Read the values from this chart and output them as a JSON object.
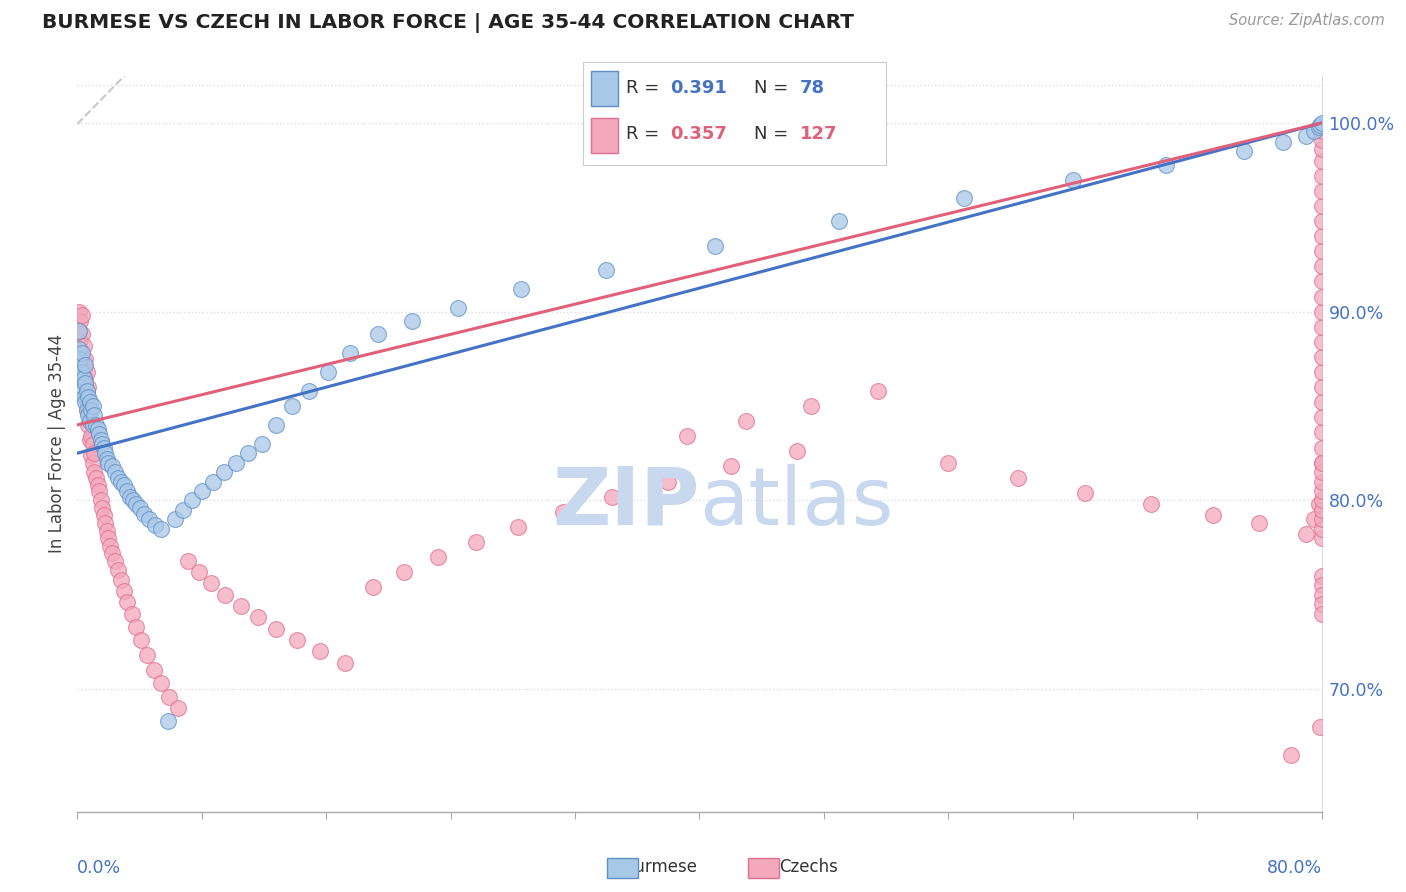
{
  "title": "BURMESE VS CZECH IN LABOR FORCE | AGE 35-44 CORRELATION CHART",
  "source_text": "Source: ZipAtlas.com",
  "ylabel": "In Labor Force | Age 35-44",
  "xmin": 0.0,
  "xmax": 0.8,
  "ymin": 0.635,
  "ymax": 1.025,
  "yticks": [
    0.7,
    0.8,
    0.9,
    1.0
  ],
  "ytick_labels": [
    "70.0%",
    "80.0%",
    "90.0%",
    "100.0%"
  ],
  "burmese_color": "#A8C8E8",
  "czech_color": "#F4A8BC",
  "burmese_edge_color": "#6090C8",
  "czech_edge_color": "#E07090",
  "burmese_line_color": "#4472C4",
  "czech_line_color": "#E0607A",
  "dashed_line_color": "#BBBBBB",
  "watermark_color": "#C8D8EE",
  "background_color": "#FFFFFF",
  "grid_color": "#DDDDDD",
  "axis_color": "#AAAAAA",
  "label_color": "#4472C4",
  "title_color": "#222222",
  "legend_r1_val": "0.391",
  "legend_n1_val": "78",
  "legend_r2_val": "0.357",
  "legend_n2_val": "127",
  "burmese_x": [
    0.001,
    0.001,
    0.001,
    0.002,
    0.002,
    0.003,
    0.003,
    0.003,
    0.004,
    0.004,
    0.005,
    0.005,
    0.005,
    0.006,
    0.006,
    0.007,
    0.007,
    0.008,
    0.008,
    0.009,
    0.01,
    0.01,
    0.011,
    0.012,
    0.013,
    0.014,
    0.015,
    0.016,
    0.017,
    0.018,
    0.019,
    0.02,
    0.022,
    0.024,
    0.026,
    0.028,
    0.03,
    0.032,
    0.034,
    0.036,
    0.038,
    0.04,
    0.043,
    0.046,
    0.05,
    0.054,
    0.058,
    0.063,
    0.068,
    0.074,
    0.08,
    0.087,
    0.094,
    0.102,
    0.11,
    0.119,
    0.128,
    0.138,
    0.149,
    0.161,
    0.175,
    0.193,
    0.215,
    0.245,
    0.285,
    0.34,
    0.41,
    0.49,
    0.57,
    0.64,
    0.7,
    0.75,
    0.775,
    0.79,
    0.795,
    0.798,
    0.799,
    0.8
  ],
  "burmese_y": [
    0.87,
    0.88,
    0.89,
    0.865,
    0.875,
    0.858,
    0.868,
    0.878,
    0.855,
    0.865,
    0.852,
    0.862,
    0.872,
    0.848,
    0.858,
    0.845,
    0.855,
    0.842,
    0.852,
    0.848,
    0.84,
    0.85,
    0.845,
    0.84,
    0.838,
    0.835,
    0.832,
    0.83,
    0.828,
    0.825,
    0.822,
    0.82,
    0.818,
    0.815,
    0.812,
    0.81,
    0.808,
    0.805,
    0.802,
    0.8,
    0.798,
    0.796,
    0.793,
    0.79,
    0.787,
    0.785,
    0.683,
    0.79,
    0.795,
    0.8,
    0.805,
    0.81,
    0.815,
    0.82,
    0.825,
    0.83,
    0.84,
    0.85,
    0.858,
    0.868,
    0.878,
    0.888,
    0.895,
    0.902,
    0.912,
    0.922,
    0.935,
    0.948,
    0.96,
    0.97,
    0.978,
    0.985,
    0.99,
    0.993,
    0.996,
    0.998,
    0.999,
    1.0
  ],
  "czech_x": [
    0.001,
    0.001,
    0.001,
    0.002,
    0.002,
    0.002,
    0.003,
    0.003,
    0.003,
    0.003,
    0.004,
    0.004,
    0.004,
    0.005,
    0.005,
    0.005,
    0.006,
    0.006,
    0.006,
    0.007,
    0.007,
    0.007,
    0.008,
    0.008,
    0.009,
    0.009,
    0.01,
    0.01,
    0.011,
    0.011,
    0.012,
    0.013,
    0.014,
    0.015,
    0.016,
    0.017,
    0.018,
    0.019,
    0.02,
    0.021,
    0.022,
    0.024,
    0.026,
    0.028,
    0.03,
    0.032,
    0.035,
    0.038,
    0.041,
    0.045,
    0.049,
    0.054,
    0.059,
    0.065,
    0.071,
    0.078,
    0.086,
    0.095,
    0.105,
    0.116,
    0.128,
    0.141,
    0.156,
    0.172,
    0.19,
    0.21,
    0.232,
    0.256,
    0.283,
    0.312,
    0.344,
    0.38,
    0.42,
    0.463,
    0.392,
    0.43,
    0.472,
    0.515,
    0.56,
    0.605,
    0.648,
    0.69,
    0.73,
    0.76,
    0.78,
    0.79,
    0.795,
    0.798,
    0.799,
    0.8,
    0.8,
    0.8,
    0.8,
    0.8,
    0.8,
    0.8,
    0.8,
    0.8,
    0.8,
    0.8,
    0.8,
    0.8,
    0.8,
    0.8,
    0.8,
    0.8,
    0.8,
    0.8,
    0.8,
    0.8,
    0.8,
    0.8,
    0.8,
    0.8,
    0.8,
    0.8,
    0.8,
    0.8,
    0.8,
    0.8,
    0.8,
    0.8,
    0.8,
    0.8,
    0.8,
    0.8,
    0.8
  ],
  "czech_y": [
    0.88,
    0.89,
    0.9,
    0.875,
    0.885,
    0.895,
    0.868,
    0.878,
    0.888,
    0.898,
    0.862,
    0.872,
    0.882,
    0.855,
    0.865,
    0.875,
    0.848,
    0.858,
    0.868,
    0.84,
    0.85,
    0.86,
    0.832,
    0.842,
    0.824,
    0.834,
    0.82,
    0.83,
    0.815,
    0.825,
    0.812,
    0.808,
    0.805,
    0.8,
    0.796,
    0.792,
    0.788,
    0.784,
    0.78,
    0.776,
    0.772,
    0.768,
    0.763,
    0.758,
    0.752,
    0.746,
    0.74,
    0.733,
    0.726,
    0.718,
    0.71,
    0.703,
    0.696,
    0.69,
    0.768,
    0.762,
    0.756,
    0.75,
    0.744,
    0.738,
    0.732,
    0.726,
    0.72,
    0.714,
    0.754,
    0.762,
    0.77,
    0.778,
    0.786,
    0.794,
    0.802,
    0.81,
    0.818,
    0.826,
    0.834,
    0.842,
    0.85,
    0.858,
    0.82,
    0.812,
    0.804,
    0.798,
    0.792,
    0.788,
    0.665,
    0.782,
    0.79,
    0.798,
    0.68,
    0.82,
    0.828,
    0.836,
    0.844,
    0.852,
    0.86,
    0.868,
    0.876,
    0.884,
    0.892,
    0.9,
    0.908,
    0.916,
    0.924,
    0.932,
    0.94,
    0.948,
    0.956,
    0.964,
    0.972,
    0.98,
    0.986,
    0.991,
    0.996,
    0.78,
    0.785,
    0.79,
    0.795,
    0.8,
    0.805,
    0.81,
    0.815,
    0.82,
    0.76,
    0.755,
    0.75,
    0.745,
    0.74
  ]
}
